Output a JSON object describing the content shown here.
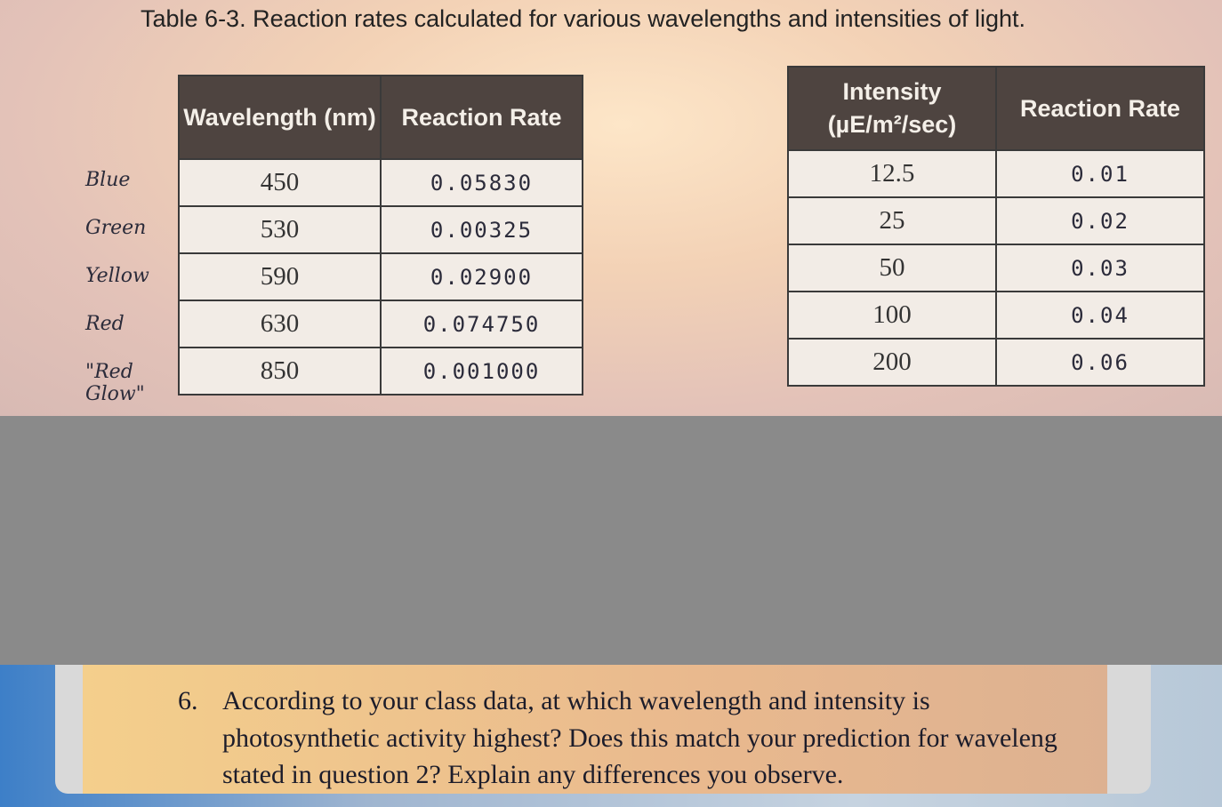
{
  "caption": "Table 6-3. Reaction rates calculated for various wavelengths and intensities of light.",
  "wavelength_table": {
    "headers": [
      "Wavelength (nm)",
      "Reaction Rate"
    ],
    "rows": [
      [
        "Blue",
        "450",
        "0.05830"
      ],
      [
        "Green",
        "530",
        "0.00325"
      ],
      [
        "Yellow",
        "590",
        "0.02900"
      ],
      [
        "Red",
        "630",
        "0.074750"
      ],
      [
        "\"Red Glow\"",
        "850",
        "0.001000"
      ]
    ]
  },
  "intensity_table": {
    "headers": [
      "Intensity (µE/m²/sec)",
      "Reaction Rate"
    ],
    "rows": [
      [
        "12.5",
        "0.01"
      ],
      [
        "25",
        "0.02"
      ],
      [
        "50",
        "0.03"
      ],
      [
        "100",
        "0.04"
      ],
      [
        "200",
        "0.06"
      ]
    ]
  },
  "question": {
    "number": "6.",
    "lines": [
      "According to your class data, at which wavelength and intensity is",
      "photosynthetic activity highest? Does this match your prediction for waveleng",
      "stated in question 2? Explain any differences you observe."
    ]
  }
}
